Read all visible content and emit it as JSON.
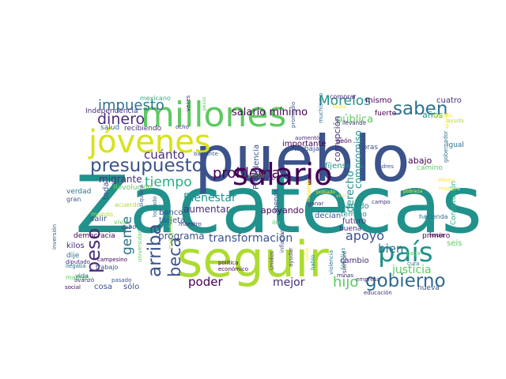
{
  "colors": {
    "background": "#ffffff",
    "palette": [
      "#440154",
      "#472d7b",
      "#3b528b",
      "#2c728e",
      "#21918c",
      "#28ae80",
      "#5ec962",
      "#addc30",
      "#fde725"
    ]
  },
  "words": [
    {
      "text": "Zacatecas",
      "color": "#21918c"
    },
    {
      "text": "pueblo",
      "color": "#3b528b"
    },
    {
      "text": "seguir",
      "color": "#addc30"
    },
    {
      "text": "millones",
      "color": "#5ec962"
    },
    {
      "text": "jóvenes",
      "color": "#d8e219"
    },
    {
      "text": "salario",
      "color": "#440154"
    },
    {
      "text": "país",
      "color": "#21918c"
    },
    {
      "text": "presupuesto",
      "color": "#3b528b"
    },
    {
      "text": "gobierno",
      "color": "#31688e"
    },
    {
      "text": "problema",
      "color": "#440154"
    },
    {
      "text": "impuesto",
      "color": "#2c728e"
    },
    {
      "text": "dinero",
      "color": "#472d7b"
    },
    {
      "text": "saben",
      "color": "#2c728e"
    },
    {
      "text": "peso",
      "color": "#472d7b"
    },
    {
      "text": "beca",
      "color": "#3b528b"
    },
    {
      "text": "arriba",
      "color": "#3b528b"
    },
    {
      "text": "tiempo",
      "color": "#28ae80"
    },
    {
      "text": "Morelos",
      "color": "#21918c"
    },
    {
      "text": "cuánto",
      "color": "#472d7b"
    },
    {
      "text": "gente",
      "color": "#2c728e"
    },
    {
      "text": "transformación",
      "color": "#3b528b"
    },
    {
      "text": "poder",
      "color": "#440154"
    },
    {
      "text": "mejor",
      "color": "#472d7b"
    },
    {
      "text": "hijo",
      "color": "#5ec962"
    },
    {
      "text": "apoyo",
      "color": "#3b528b"
    },
    {
      "text": "bien",
      "color": "#2c728e"
    },
    {
      "text": "justicia",
      "color": "#5ec962"
    },
    {
      "text": "Bienestar",
      "color": "#21918c"
    },
    {
      "text": "pública",
      "color": "#5ec962"
    },
    {
      "text": "derecho",
      "color": "#21918c"
    },
    {
      "text": "salario mínimo",
      "color": "#440154"
    },
    {
      "text": "migrante",
      "color": "#472d7b"
    },
    {
      "text": "aumentar",
      "color": "#472d7b"
    },
    {
      "text": "programa",
      "color": "#3b528b"
    },
    {
      "text": "mismo",
      "color": "#440154"
    },
    {
      "text": "cuatro",
      "color": "#472d7b"
    },
    {
      "text": "años",
      "color": "#21918c"
    },
    {
      "text": "corrupción",
      "color": "#472d7b"
    },
    {
      "text": "compromiso",
      "color": "#21918c"
    },
    {
      "text": "importante",
      "color": "#440154"
    },
    {
      "text": "recibiendo",
      "color": "#472d7b"
    },
    {
      "text": "Independencia",
      "color": "#472d7b"
    },
    {
      "text": "salud",
      "color": "#2c728e"
    },
    {
      "text": "mexicano",
      "color": "#28ae80"
    },
    {
      "text": "apoyando",
      "color": "#440154"
    },
    {
      "text": "banco",
      "color": "#3b528b"
    },
    {
      "text": "tarjeta",
      "color": "#3b528b"
    },
    {
      "text": "Presidencia",
      "color": "#3b528b"
    },
    {
      "text": "fíjense",
      "color": "#21918c"
    },
    {
      "text": "abajo",
      "color": "#440154"
    },
    {
      "text": "camino",
      "color": "#5ec962"
    },
    {
      "text": "Constitución",
      "color": "#28ae80"
    },
    {
      "text": "partido",
      "color": "#21918c"
    },
    {
      "text": "terreno",
      "color": "#21918c"
    },
    {
      "text": "futuro",
      "color": "#472d7b"
    },
    {
      "text": "buena",
      "color": "#472d7b"
    },
    {
      "text": "decían",
      "color": "#3b528b"
    },
    {
      "text": "menos",
      "color": "#3b528b"
    },
    {
      "text": "seis",
      "color": "#5ec962"
    },
    {
      "text": "primero",
      "color": "#440154"
    },
    {
      "text": "cambio",
      "color": "#472d7b"
    },
    {
      "text": "cosa",
      "color": "#3b528b"
    },
    {
      "text": "sólo",
      "color": "#3b528b"
    },
    {
      "text": "nueva",
      "color": "#3b528b"
    },
    {
      "text": "democracia",
      "color": "#440154"
    },
    {
      "text": "kilos",
      "color": "#472d7b"
    },
    {
      "text": "dije",
      "color": "#2c728e"
    },
    {
      "text": "madres",
      "color": "#5ec962"
    },
    {
      "text": "vida",
      "color": "#2c728e"
    },
    {
      "text": "salir",
      "color": "#3b528b"
    },
    {
      "text": "toda",
      "color": "#3b528b"
    },
    {
      "text": "verdad",
      "color": "#2c728e"
    },
    {
      "text": "gran",
      "color": "#3b528b"
    },
    {
      "text": "trabajar",
      "color": "#3b528b"
    },
    {
      "text": "horas",
      "color": "#3b528b"
    },
    {
      "text": "Revolución",
      "color": "#5ec962"
    },
    {
      "text": "acuerdo",
      "color": "#addc30"
    },
    {
      "text": "mundo",
      "color": "#addc30"
    },
    {
      "text": "viva",
      "color": "#5ec962"
    },
    {
      "text": "cabo",
      "color": "#3b528b"
    },
    {
      "text": "trabajo",
      "color": "#3b528b"
    },
    {
      "text": "llevando",
      "color": "#472d7b"
    },
    {
      "text": "fuerte",
      "color": "#440154"
    },
    {
      "text": "ayuda",
      "color": "#addc30"
    },
    {
      "text": "igual",
      "color": "#2c728e"
    },
    {
      "text": "padres",
      "color": "#3b528b"
    },
    {
      "text": "gobernador",
      "color": "#2c728e"
    },
    {
      "text": "comprar",
      "color": "#472d7b"
    },
    {
      "text": "peón",
      "color": "#440154"
    },
    {
      "text": "aumentó",
      "color": "#472d7b"
    },
    {
      "text": "promedio",
      "color": "#3b528b"
    },
    {
      "text": "muchísimo",
      "color": "#2c728e"
    },
    {
      "text": "hacienda",
      "color": "#2c728e"
    },
    {
      "text": "hacia",
      "color": "#440154"
    },
    {
      "text": "paga",
      "color": "#5ec962"
    },
    {
      "text": "cura",
      "color": "#2c728e"
    },
    {
      "text": "manera",
      "color": "#fde725"
    },
    {
      "text": "campo",
      "color": "#472d7b"
    },
    {
      "text": "veces",
      "color": "#472d7b"
    },
    {
      "text": "ocho",
      "color": "#472d7b"
    },
    {
      "text": "bastante",
      "color": "#3b528b"
    },
    {
      "text": "maestro",
      "color": "#472d7b"
    },
    {
      "text": "sueldo",
      "color": "#5ec962"
    },
    {
      "text": "beneficio",
      "color": "#472d7b"
    },
    {
      "text": "inflación",
      "color": "#3b528b"
    },
    {
      "text": "ganar",
      "color": "#472d7b"
    },
    {
      "text": "iba",
      "color": "#5ec962"
    },
    {
      "text": "Unidos",
      "color": "#472d7b"
    },
    {
      "text": "ayudar",
      "color": "#472d7b"
    },
    {
      "text": "hablo",
      "color": "#21918c"
    },
    {
      "text": "violencia",
      "color": "#2c728e"
    },
    {
      "text": "familias",
      "color": "#21918c"
    },
    {
      "text": "siempre",
      "color": "#472d7b"
    },
    {
      "text": "empresa",
      "color": "#472d7b"
    },
    {
      "text": "educación",
      "color": "#472d7b"
    },
    {
      "text": "minas",
      "color": "#472d7b"
    },
    {
      "text": "política",
      "color": "#440154"
    },
    {
      "text": "económico",
      "color": "#440154"
    },
    {
      "text": "logrado",
      "color": "#2c728e"
    },
    {
      "text": "siquiera",
      "color": "#3b528b"
    },
    {
      "text": "universidad",
      "color": "#5ec962"
    },
    {
      "text": "trabajadores",
      "color": "#addc30"
    },
    {
      "text": "pasado",
      "color": "#3b528b"
    },
    {
      "text": "llegaba",
      "color": "#2c728e"
    },
    {
      "text": "diputado",
      "color": "#472d7b"
    },
    {
      "text": "avanzó",
      "color": "#472d7b"
    },
    {
      "text": "social",
      "color": "#440154"
    },
    {
      "text": "inversión",
      "color": "#3b528b"
    },
    {
      "text": "campesino",
      "color": "#440154"
    },
    {
      "text": "pesos",
      "color": "#5ec962"
    },
    {
      "text": "vivir",
      "color": "#fde725"
    },
    {
      "text": "fiesta",
      "color": "#fde725"
    },
    {
      "text": "poblado",
      "color": "#fde725"
    },
    {
      "text": "nación",
      "color": "#fde725"
    },
    {
      "text": "señor",
      "color": "#fde725"
    },
    {
      "text": "desarrollo",
      "color": "#fde725"
    },
    {
      "text": "gratuita",
      "color": "#fde725"
    },
    {
      "text": "apoyos",
      "color": "#fde725"
    },
    {
      "text": "México",
      "color": "#fde725"
    },
    {
      "text": "pobreza",
      "color": "#fde725"
    },
    {
      "text": "orden",
      "color": "#fde725"
    }
  ]
}
